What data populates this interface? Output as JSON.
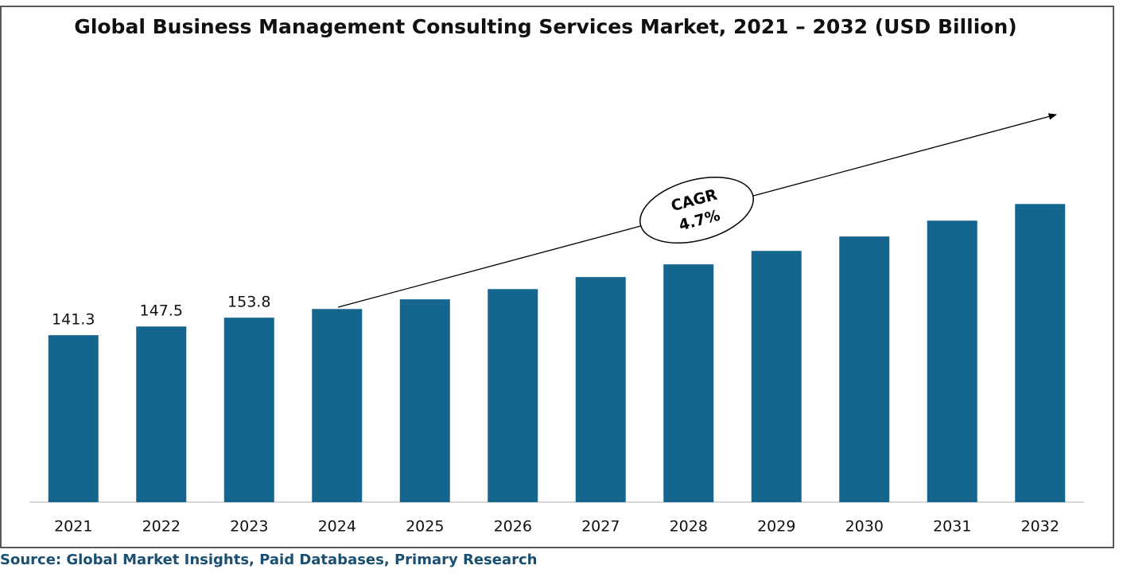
{
  "chart_data": {
    "type": "bar",
    "title": "Global Business Management Consulting Services Market, 2021 – 2032  (USD Billion)",
    "categories": [
      "2021",
      "2022",
      "2023",
      "2024",
      "2025",
      "2026",
      "2027",
      "2028",
      "2029",
      "2030",
      "2031",
      "2032"
    ],
    "values": [
      141.3,
      147.5,
      153.8,
      160.0,
      166.9,
      174.2,
      182.8,
      191.9,
      201.5,
      211.8,
      223.1,
      235.0
    ],
    "value_labels": [
      "141.3",
      "147.5",
      "153.8",
      null,
      null,
      null,
      null,
      null,
      null,
      null,
      null,
      null
    ],
    "color": "#15668f",
    "ylim": [
      22,
      300
    ],
    "annotation": {
      "lines": [
        "CAGR",
        "4.7%"
      ]
    },
    "source": "Source: Global Market Insights, Paid Databases, Primary Research"
  }
}
